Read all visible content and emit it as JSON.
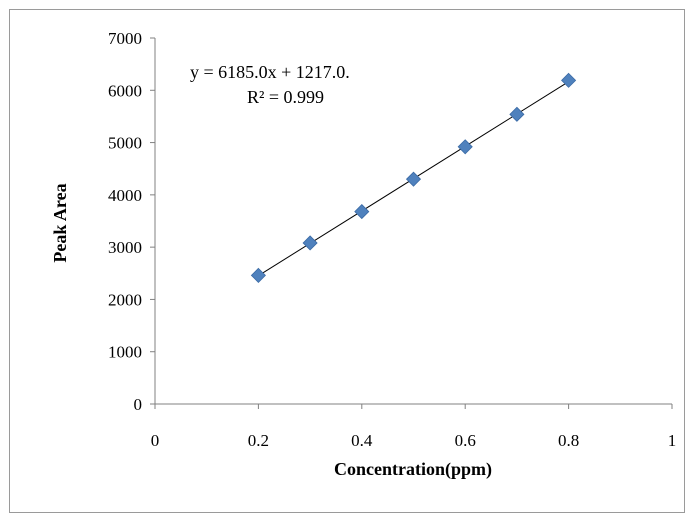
{
  "chart_data": {
    "type": "scatter",
    "title": "",
    "xlabel": "Concentration(ppm)",
    "ylabel": "Peak Area",
    "xlim": [
      0,
      1
    ],
    "ylim": [
      0,
      7000
    ],
    "xticks": [
      "0",
      "0.2",
      "0.4",
      "0.6",
      "0.8",
      "1"
    ],
    "yticks": [
      "0",
      "1000",
      "2000",
      "3000",
      "4000",
      "5000",
      "6000",
      "7000"
    ],
    "grid": false,
    "legend": "none",
    "series": [
      {
        "x": [
          0.2,
          0.3,
          0.4,
          0.5,
          0.6,
          0.7,
          0.8
        ],
        "y": [
          2460,
          3080,
          3680,
          4300,
          4920,
          5540,
          6190
        ],
        "marker": "diamond",
        "color": "#4f81bd"
      }
    ],
    "trendline": {
      "slope": 6185.0,
      "intercept": 1217.0,
      "x_range": [
        0.2,
        0.8
      ],
      "color": "#000000"
    },
    "annotations": {
      "equation": "y = 6185.0x + 1217.0.",
      "r_squared": "R² = 0.999"
    }
  }
}
